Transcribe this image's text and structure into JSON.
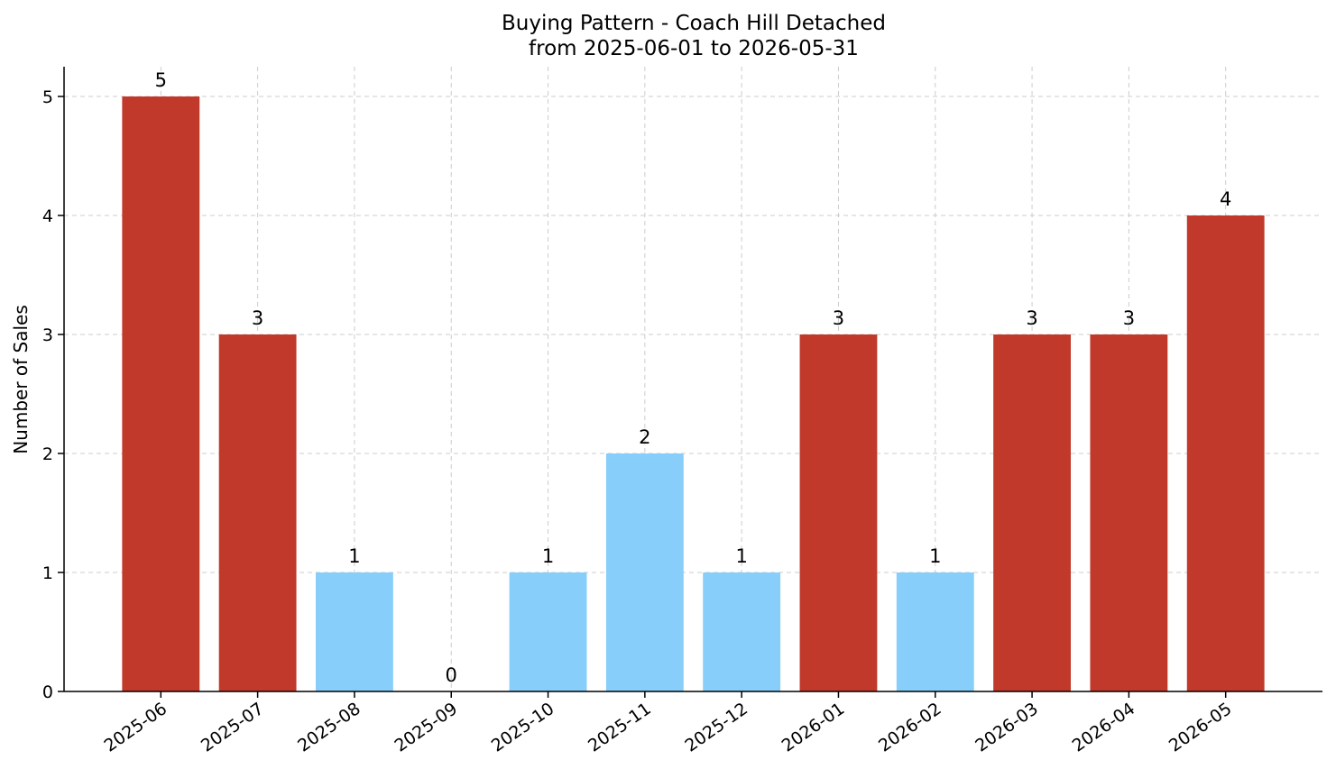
{
  "chart_data": {
    "type": "bar",
    "title": "Buying Pattern - Coach Hill Detached",
    "subtitle": "from 2025-06-01 to 2026-05-31",
    "xlabel": "",
    "ylabel": "Number of Sales",
    "categories": [
      "2025-06",
      "2025-07",
      "2025-08",
      "2025-09",
      "2025-10",
      "2025-11",
      "2025-12",
      "2026-01",
      "2026-02",
      "2026-03",
      "2026-04",
      "2026-05"
    ],
    "values": [
      5,
      3,
      1,
      0,
      1,
      2,
      1,
      3,
      1,
      3,
      3,
      4
    ],
    "bar_colors": [
      "#c0392b",
      "#c0392b",
      "#87cefa",
      "#87cefa",
      "#87cefa",
      "#87cefa",
      "#87cefa",
      "#c0392b",
      "#87cefa",
      "#c0392b",
      "#c0392b",
      "#c0392b"
    ],
    "ylim": [
      0,
      5.25
    ],
    "yticks": [
      0,
      1,
      2,
      3,
      4,
      5
    ],
    "grid": true,
    "legend": "none"
  }
}
